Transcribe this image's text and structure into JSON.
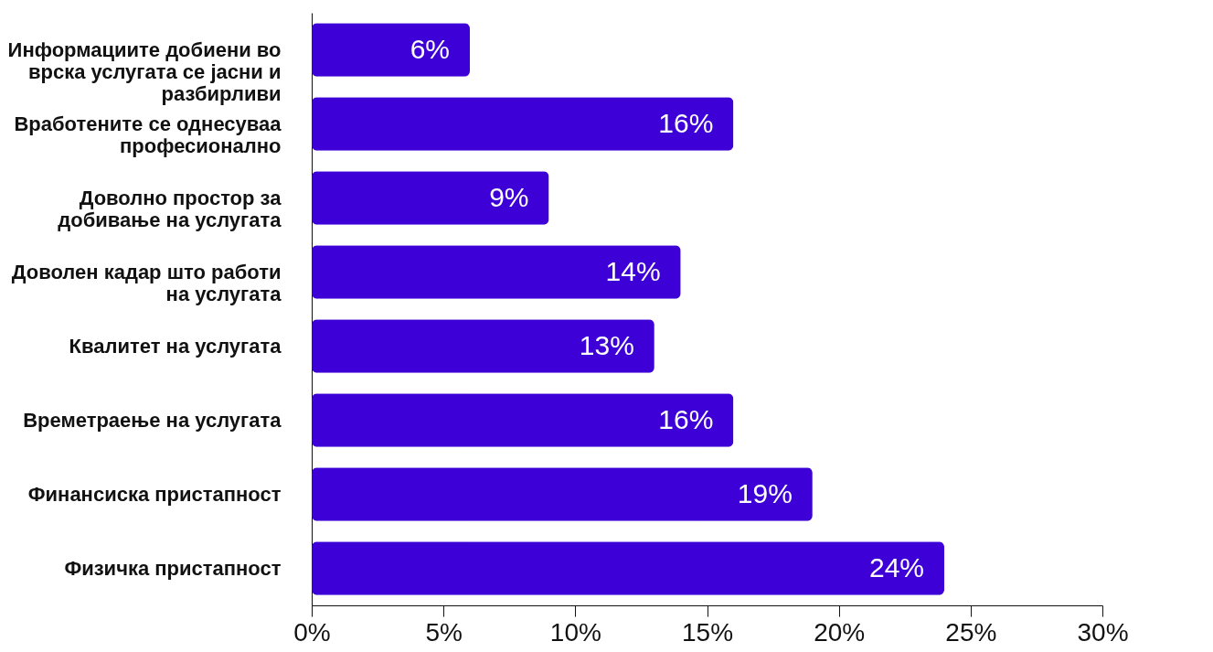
{
  "chart_data": {
    "type": "bar",
    "orientation": "horizontal",
    "categories": [
      "Информациите добиени во врска услугата се јасни и разбирливи",
      "Вработените се однесуваа професионално",
      "Доволно простор за добивање на услугата",
      "Доволен кадар што работи на услугата",
      "Квалитет на услугата",
      "Времетраење на услугата",
      "Финансиска пристапност",
      "Физичка пристапност"
    ],
    "values": [
      6,
      16,
      9,
      14,
      13,
      16,
      19,
      24
    ],
    "value_labels": [
      "6%",
      "16%",
      "9%",
      "14%",
      "13%",
      "16%",
      "19%",
      "24%"
    ],
    "color": "#3d00d6",
    "xlim": [
      0,
      30
    ],
    "xticks": [
      {
        "value": 0,
        "label": "0%"
      },
      {
        "value": 5,
        "label": "5%"
      },
      {
        "value": 10,
        "label": "10%"
      },
      {
        "value": 15,
        "label": "15%"
      },
      {
        "value": 20,
        "label": "20%"
      },
      {
        "value": 25,
        "label": "25%"
      },
      {
        "value": 30,
        "label": "30%"
      }
    ],
    "grid": false
  }
}
